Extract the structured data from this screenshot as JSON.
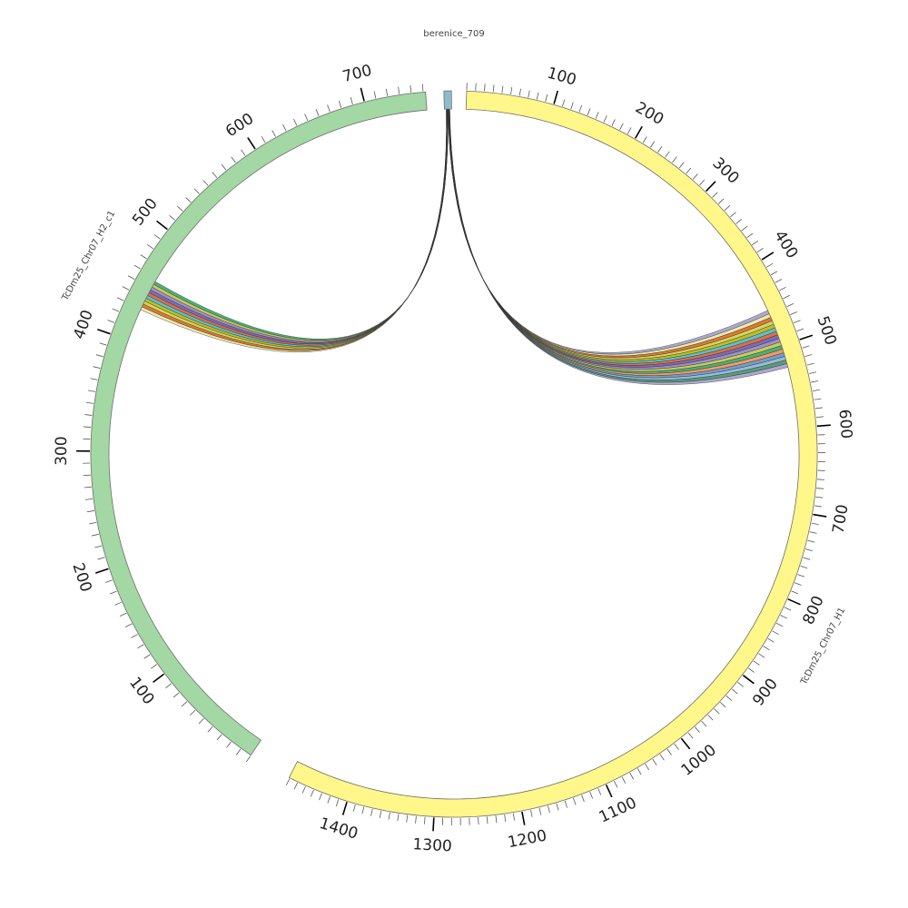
{
  "segments": [
    {
      "name": "TcDm25_Chr07_H1",
      "color": "#fff789",
      "start": 0,
      "end": 1471,
      "label_step": 100
    },
    {
      "name": "TcDm25_Chr07_H2_c1",
      "color": "#a3d7a4",
      "start": 0,
      "end": 752,
      "label_step": 100
    },
    {
      "name": "berenice_709",
      "color": "#8fbccc",
      "start": 0,
      "end": 17,
      "label_step": null
    }
  ],
  "ticks": {
    "TcDm25_Chr07_H1": [
      "100",
      "200",
      "300",
      "400",
      "500",
      "600",
      "700",
      "800",
      "900",
      "1000",
      "1100",
      "1200",
      "1300",
      "1400"
    ],
    "TcDm25_Chr07_H2_c1": [
      "100",
      "200",
      "300",
      "400",
      "500",
      "600",
      "700"
    ]
  },
  "links": {
    "colors": [
      "#9e9ac8",
      "#e6e6a0",
      "#d95f0e",
      "#cccc44",
      "#b3b300",
      "#41b6c4",
      "#d05a2a",
      "#6a51a3",
      "#8c7cc0",
      "#c1c140",
      "#2ca25f",
      "#f08a4b",
      "#5e8cc0",
      "#80b1d3",
      "#3d8c60"
    ],
    "groups": [
      {
        "from_segment": "berenice_709",
        "to_segment": "TcDm25_Chr07_H1",
        "to_range": [
          455,
          527
        ],
        "count": 16
      },
      {
        "from_segment": "berenice_709",
        "to_segment": "TcDm25_Chr07_H2_c1",
        "to_range": [
          429,
          457
        ],
        "count": 10
      }
    ]
  }
}
